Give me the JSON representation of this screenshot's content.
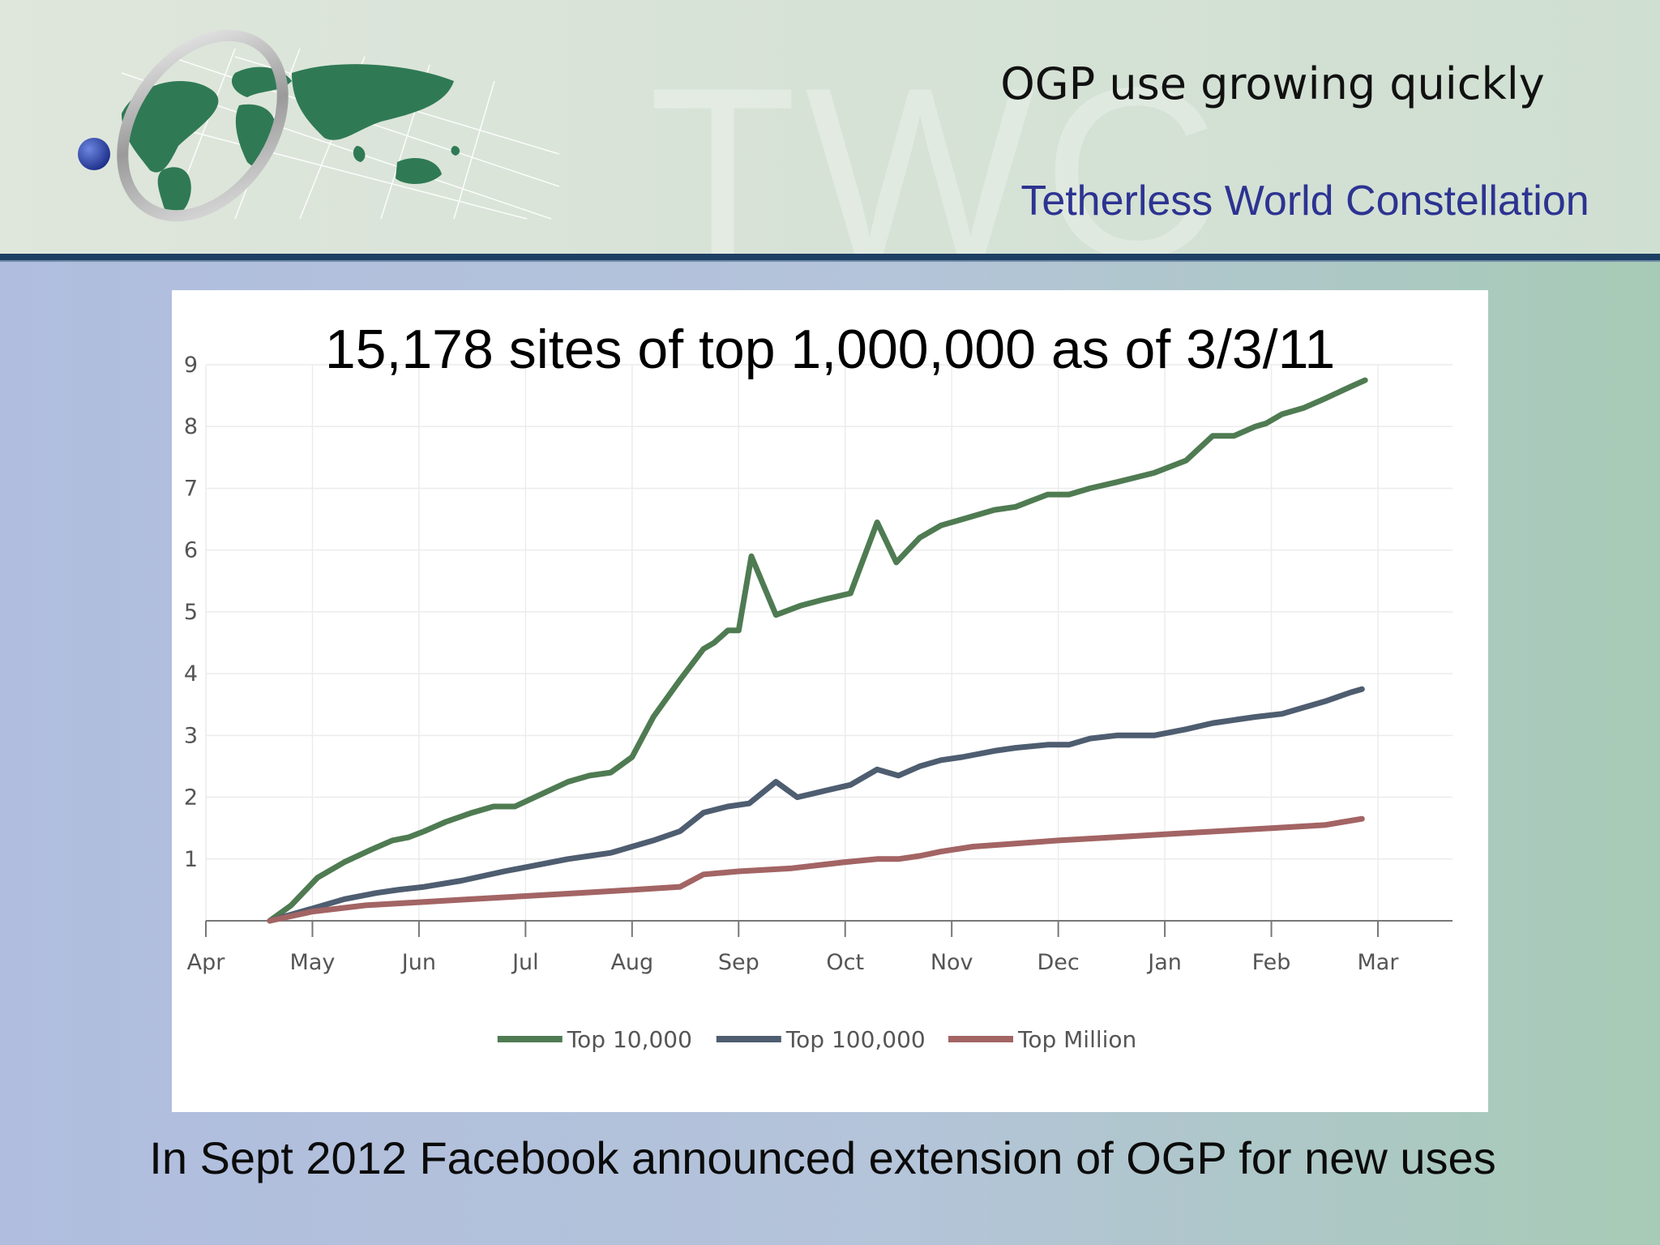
{
  "slide": {
    "title": "OGP use growing quickly",
    "organization": "Tetherless World Constellation",
    "watermark": "TWC",
    "caption": "In Sept 2012 Facebook announced extension of OGP for new uses",
    "colors": {
      "header_rule": "#1d3f63",
      "org_text": "#2d3391"
    },
    "logo_icon": "globe-ring-logo-icon"
  },
  "chart_data": {
    "type": "line",
    "title": "15,178 sites of top 1,000,000 as of 3/3/11",
    "xlabel": "",
    "ylabel": "",
    "x_ticks": [
      "Apr",
      "May",
      "Jun",
      "Jul",
      "Aug",
      "Sep",
      "Oct",
      "Nov",
      "Dec",
      "Jan",
      "Feb",
      "Mar"
    ],
    "y_ticks": [
      1,
      2,
      3,
      4,
      5,
      6,
      7,
      8,
      9
    ],
    "xlim": [
      0,
      11.7
    ],
    "ylim": [
      0,
      9
    ],
    "grid": true,
    "legend_position": "bottom",
    "x_unit": "months since start of Apr",
    "series": [
      {
        "name": "Top 10,000",
        "color": "#4f7b52",
        "x": [
          0.6,
          0.8,
          1.05,
          1.3,
          1.55,
          1.75,
          1.9,
          2.05,
          2.25,
          2.5,
          2.7,
          2.9,
          3.15,
          3.4,
          3.6,
          3.8,
          4.0,
          4.2,
          4.45,
          4.67,
          4.77,
          4.9,
          5.0,
          5.12,
          5.35,
          5.58,
          5.8,
          6.05,
          6.3,
          6.48,
          6.7,
          6.9,
          7.1,
          7.4,
          7.6,
          7.9,
          8.1,
          8.3,
          8.55,
          8.9,
          9.2,
          9.45,
          9.65,
          9.85,
          9.95,
          10.1,
          10.3,
          10.5,
          10.75,
          10.88
        ],
        "values": [
          0.0,
          0.25,
          0.7,
          0.95,
          1.15,
          1.3,
          1.35,
          1.45,
          1.6,
          1.75,
          1.85,
          1.85,
          2.05,
          2.25,
          2.35,
          2.4,
          2.65,
          3.3,
          3.9,
          4.4,
          4.5,
          4.7,
          4.7,
          5.9,
          4.95,
          5.1,
          5.2,
          5.3,
          6.45,
          5.8,
          6.2,
          6.4,
          6.5,
          6.65,
          6.7,
          6.9,
          6.9,
          7.0,
          7.1,
          7.25,
          7.45,
          7.85,
          7.85,
          8.0,
          8.05,
          8.2,
          8.3,
          8.45,
          8.65,
          8.75
        ]
      },
      {
        "name": "Top 100,000",
        "color": "#4e5d70",
        "x": [
          0.6,
          1.0,
          1.3,
          1.6,
          1.8,
          2.05,
          2.4,
          2.8,
          3.1,
          3.4,
          3.6,
          3.8,
          4.0,
          4.2,
          4.45,
          4.67,
          4.9,
          5.1,
          5.35,
          5.55,
          5.8,
          6.05,
          6.3,
          6.5,
          6.7,
          6.9,
          7.1,
          7.4,
          7.6,
          7.9,
          8.1,
          8.3,
          8.55,
          8.9,
          9.2,
          9.45,
          9.65,
          9.85,
          10.1,
          10.3,
          10.5,
          10.75,
          10.85
        ],
        "values": [
          0.0,
          0.2,
          0.35,
          0.45,
          0.5,
          0.55,
          0.65,
          0.8,
          0.9,
          1.0,
          1.05,
          1.1,
          1.2,
          1.3,
          1.45,
          1.75,
          1.85,
          1.9,
          2.25,
          2.0,
          2.1,
          2.2,
          2.45,
          2.35,
          2.5,
          2.6,
          2.65,
          2.75,
          2.8,
          2.85,
          2.85,
          2.95,
          3.0,
          3.0,
          3.1,
          3.2,
          3.25,
          3.3,
          3.35,
          3.45,
          3.55,
          3.7,
          3.75
        ]
      },
      {
        "name": "Top Million",
        "color": "#a36464",
        "x": [
          0.6,
          1.0,
          1.5,
          2.0,
          2.5,
          3.0,
          3.5,
          4.0,
          4.45,
          4.67,
          5.0,
          5.5,
          6.0,
          6.3,
          6.5,
          6.7,
          6.9,
          7.2,
          7.6,
          8.0,
          8.5,
          9.0,
          9.5,
          10.0,
          10.5,
          10.85
        ],
        "values": [
          0.0,
          0.15,
          0.25,
          0.3,
          0.35,
          0.4,
          0.45,
          0.5,
          0.55,
          0.75,
          0.8,
          0.85,
          0.95,
          1.0,
          1.0,
          1.05,
          1.12,
          1.2,
          1.25,
          1.3,
          1.35,
          1.4,
          1.45,
          1.5,
          1.55,
          1.65
        ]
      }
    ]
  }
}
